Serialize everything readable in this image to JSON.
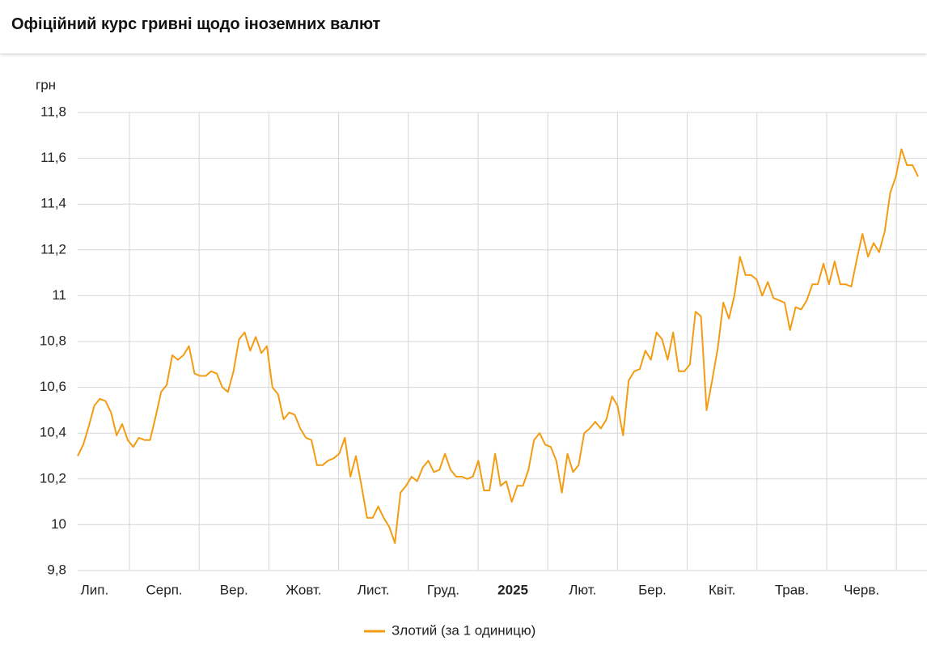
{
  "header": {
    "title": "Офіційний курс гривні щодо іноземних валют"
  },
  "chart_data": {
    "type": "line",
    "y_unit": "грн",
    "months": [
      "Лип.",
      "Серп.",
      "Вер.",
      "Жовт.",
      "Лист.",
      "Груд.",
      "2025",
      "Лют.",
      "Бер.",
      "Квіт.",
      "Трав.",
      "Черв."
    ],
    "series": [
      {
        "name": "Злотий (за 1 одиницю)",
        "color": "#f39c12",
        "values": [
          10.3,
          10.35,
          10.43,
          10.52,
          10.55,
          10.54,
          10.49,
          10.39,
          10.44,
          10.37,
          10.34,
          10.38,
          10.37,
          10.37,
          10.47,
          10.58,
          10.61,
          10.74,
          10.72,
          10.74,
          10.78,
          10.66,
          10.65,
          10.65,
          10.67,
          10.66,
          10.6,
          10.58,
          10.67,
          10.81,
          10.84,
          10.76,
          10.82,
          10.75,
          10.78,
          10.6,
          10.57,
          10.46,
          10.49,
          10.48,
          10.42,
          10.38,
          10.37,
          10.26,
          10.26,
          10.28,
          10.29,
          10.31,
          10.38,
          10.21,
          10.3,
          10.17,
          10.03,
          10.03,
          10.08,
          10.03,
          9.99,
          9.92,
          10.14,
          10.17,
          10.21,
          10.19,
          10.25,
          10.28,
          10.23,
          10.24,
          10.31,
          10.24,
          10.21,
          10.21,
          10.2,
          10.21,
          10.28,
          10.15,
          10.15,
          10.31,
          10.17,
          10.19,
          10.1,
          10.17,
          10.17,
          10.24,
          10.37,
          10.4,
          10.35,
          10.34,
          10.28,
          10.14,
          10.31,
          10.23,
          10.26,
          10.4,
          10.42,
          10.45,
          10.42,
          10.46,
          10.56,
          10.52,
          10.39,
          10.63,
          10.67,
          10.68,
          10.76,
          10.72,
          10.84,
          10.81,
          10.72,
          10.84,
          10.67,
          10.67,
          10.7,
          10.93,
          10.91,
          10.5,
          10.63,
          10.77,
          10.97,
          10.9,
          11.0,
          11.17,
          11.09,
          11.09,
          11.07,
          11.0,
          11.06,
          10.99,
          10.98,
          10.97,
          10.85,
          10.95,
          10.94,
          10.98,
          11.05,
          11.05,
          11.14,
          11.05,
          11.15,
          11.05,
          11.05,
          11.04,
          11.16,
          11.27,
          11.17,
          11.23,
          11.19,
          11.28,
          11.45,
          11.52,
          11.64,
          11.57,
          11.57,
          11.52
        ]
      }
    ],
    "ylim": [
      9.8,
      11.8
    ],
    "yticks": [
      {
        "value": 9.8,
        "label": "9,8"
      },
      10,
      {
        "value": 10.2,
        "label": "10,2"
      },
      {
        "value": 10.4,
        "label": "10,4"
      },
      {
        "value": 10.6,
        "label": "10,6"
      },
      {
        "value": 10.8,
        "label": "10,8"
      },
      11,
      {
        "value": 11.2,
        "label": "11,2"
      },
      {
        "value": 11.4,
        "label": "11,4"
      },
      {
        "value": 11.6,
        "label": "11,6"
      },
      {
        "value": 11.8,
        "label": "11,8"
      }
    ],
    "grid": true,
    "legend": "bottom"
  }
}
